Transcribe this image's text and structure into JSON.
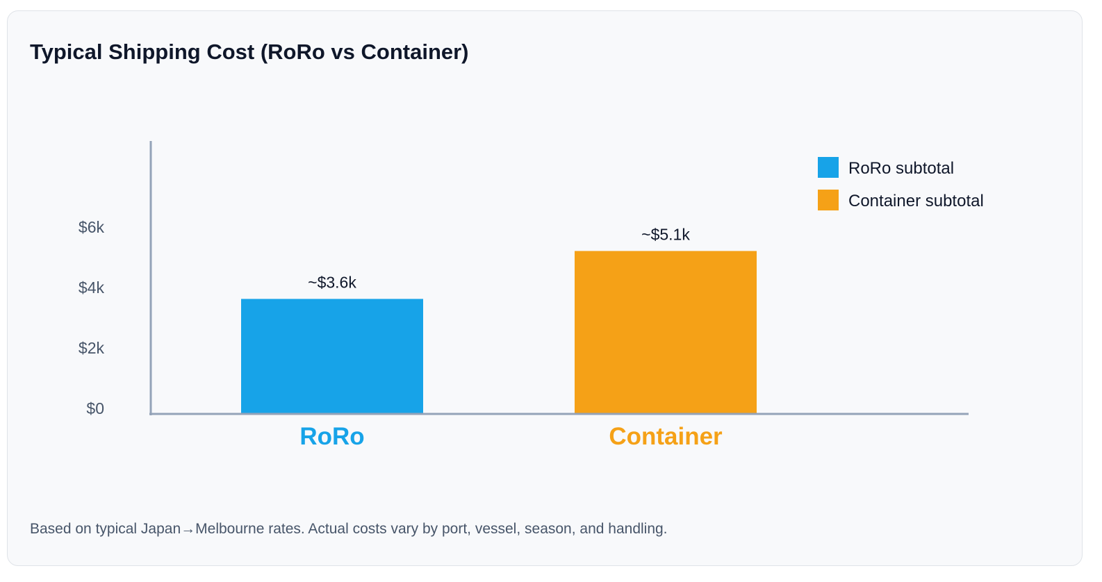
{
  "chart_data": {
    "type": "bar",
    "title": "Typical Shipping Cost (RoRo vs Container)",
    "categories": [
      "RoRo",
      "Container"
    ],
    "values": [
      3600,
      5100
    ],
    "data_labels": [
      "~$3.6k",
      "~$5.1k"
    ],
    "colors": [
      "#17a3e8",
      "#f5a117"
    ],
    "legend": [
      "RoRo subtotal",
      "Container subtotal"
    ],
    "legend_position": "top-right",
    "yticks": [
      {
        "value": 0,
        "label": "$0"
      },
      {
        "value": 2000,
        "label": "$2k"
      },
      {
        "value": 4000,
        "label": "$4k"
      },
      {
        "value": 6000,
        "label": "$6k"
      }
    ],
    "xlabel": "",
    "ylabel": "",
    "ylim": [
      0,
      8000
    ],
    "grid": false,
    "footnote": "Based on typical Japan→Melbourne rates. Actual costs vary by port, vessel, season, and handling."
  }
}
